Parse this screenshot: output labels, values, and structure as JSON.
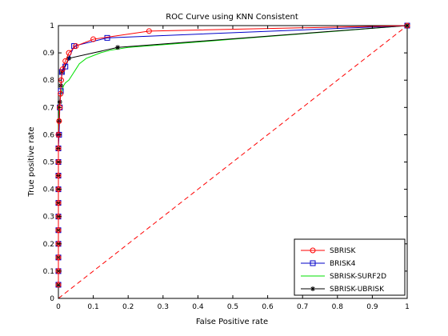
{
  "chart_data": {
    "type": "line",
    "title": "ROC Curve using KNN Consistent",
    "xlabel": "False Positive rate",
    "ylabel": "True positive rate",
    "xlim": [
      0,
      1
    ],
    "ylim": [
      0,
      1
    ],
    "xticks": [
      "0",
      "0.1",
      "0.2",
      "0.3",
      "0.4",
      "0.5",
      "0.6",
      "0.7",
      "0.8",
      "0.9",
      "1"
    ],
    "yticks": [
      "0",
      "0.1",
      "0.2",
      "0.3",
      "0.4",
      "0.5",
      "0.6",
      "0.7",
      "0.8",
      "0.9",
      "1"
    ],
    "grid": false,
    "legend_position": "bottom-right",
    "series": [
      {
        "name": "SBRISK",
        "color": "#ff0000",
        "marker": "circle",
        "x": [
          0,
          0,
          0,
          0,
          0,
          0,
          0,
          0,
          0,
          0,
          0,
          0,
          0.002,
          0.004,
          0.006,
          0.008,
          0.012,
          0.02,
          0.03,
          0.05,
          0.1,
          0.26,
          1.0
        ],
        "y": [
          0.05,
          0.1,
          0.15,
          0.2,
          0.25,
          0.3,
          0.35,
          0.4,
          0.45,
          0.5,
          0.55,
          0.6,
          0.65,
          0.7,
          0.75,
          0.8,
          0.84,
          0.87,
          0.9,
          0.925,
          0.95,
          0.98,
          1.0
        ]
      },
      {
        "name": "BRISK4",
        "color": "#0000c8",
        "marker": "square",
        "x": [
          0,
          0,
          0,
          0,
          0,
          0,
          0,
          0,
          0,
          0,
          0,
          0.002,
          0.004,
          0.007,
          0.01,
          0.02,
          0.045,
          0.14,
          1.0
        ],
        "y": [
          0.05,
          0.1,
          0.15,
          0.2,
          0.25,
          0.3,
          0.35,
          0.4,
          0.45,
          0.5,
          0.55,
          0.6,
          0.7,
          0.76,
          0.83,
          0.85,
          0.925,
          0.955,
          1.0
        ]
      },
      {
        "name": "SBRISK-SURF2D",
        "color": "#00e000",
        "marker": "none",
        "x": [
          0,
          0,
          0.002,
          0.004,
          0.006,
          0.01,
          0.015,
          0.02,
          0.03,
          0.04,
          0.05,
          0.06,
          0.08,
          0.1,
          0.12,
          0.15,
          0.2,
          0.3,
          0.4,
          0.5,
          0.6,
          0.7,
          0.8,
          0.9,
          1.0
        ],
        "y": [
          0.05,
          0.6,
          0.7,
          0.72,
          0.74,
          0.76,
          0.78,
          0.79,
          0.8,
          0.82,
          0.84,
          0.86,
          0.88,
          0.89,
          0.9,
          0.91,
          0.92,
          0.93,
          0.94,
          0.95,
          0.96,
          0.97,
          0.98,
          0.99,
          1.0
        ]
      },
      {
        "name": "SBRISK-UBRISK",
        "color": "#000000",
        "marker": "star",
        "x": [
          0,
          0,
          0,
          0,
          0,
          0,
          0,
          0,
          0,
          0,
          0,
          0,
          0.002,
          0.004,
          0.007,
          0.01,
          0.03,
          0.17,
          1.0
        ],
        "y": [
          0.05,
          0.1,
          0.15,
          0.2,
          0.25,
          0.3,
          0.35,
          0.4,
          0.45,
          0.5,
          0.55,
          0.6,
          0.65,
          0.72,
          0.78,
          0.83,
          0.88,
          0.92,
          1.0
        ]
      },
      {
        "name": "",
        "color": "#ff0000",
        "marker": "none",
        "dashed": true,
        "x": [
          0,
          1
        ],
        "y": [
          0,
          1
        ]
      }
    ]
  }
}
